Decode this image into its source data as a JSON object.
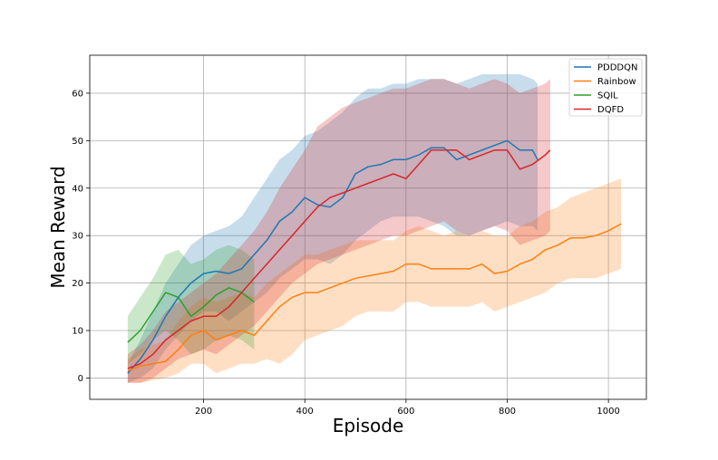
{
  "chart_data": {
    "type": "line",
    "title": "",
    "xlabel": "Episode",
    "ylabel": "Mean Reward",
    "xlim": [
      -25,
      1075
    ],
    "ylim": [
      -4.5,
      68
    ],
    "xticks": [
      200,
      400,
      600,
      800,
      1000
    ],
    "yticks": [
      0,
      10,
      20,
      30,
      40,
      50,
      60
    ],
    "grid": true,
    "legend_position": "top-right",
    "series": [
      {
        "name": "PDDDQN",
        "color": "#1f77b4",
        "x": [
          50,
          75,
          100,
          125,
          150,
          175,
          200,
          225,
          250,
          275,
          300,
          325,
          350,
          375,
          400,
          425,
          450,
          475,
          500,
          525,
          550,
          575,
          600,
          625,
          650,
          675,
          700,
          725,
          750,
          775,
          800,
          825,
          850,
          860
        ],
        "y": [
          1,
          4,
          8,
          13,
          17,
          20,
          22,
          22.5,
          22,
          23,
          26,
          29,
          33,
          35,
          38,
          36.5,
          36,
          38,
          43,
          44.5,
          45,
          46,
          46,
          47,
          48.5,
          48.5,
          46,
          47,
          48,
          49,
          50,
          48,
          48,
          46
        ],
        "lower": [
          -1,
          0,
          2,
          6,
          9,
          12,
          14,
          14,
          12,
          14,
          16,
          18,
          21,
          23,
          25,
          25,
          24,
          26,
          29,
          31,
          33,
          34,
          34,
          34,
          33,
          32,
          30,
          30,
          31,
          32,
          33,
          32,
          32,
          31
        ],
        "upper": [
          3,
          8,
          14,
          20,
          24,
          28,
          30,
          31,
          32,
          34,
          38,
          42,
          46,
          48,
          51,
          52,
          54,
          56,
          59,
          61,
          61,
          62,
          62,
          63,
          63,
          63,
          62,
          63,
          64,
          64,
          64,
          64,
          63,
          62
        ]
      },
      {
        "name": "Rainbow",
        "color": "#ff7f0e",
        "x": [
          50,
          75,
          100,
          125,
          150,
          175,
          200,
          225,
          250,
          275,
          300,
          325,
          350,
          375,
          400,
          425,
          450,
          475,
          500,
          525,
          550,
          575,
          600,
          625,
          650,
          675,
          700,
          725,
          750,
          775,
          800,
          825,
          850,
          875,
          900,
          925,
          950,
          975,
          1000,
          1025
        ],
        "y": [
          1.5,
          2.5,
          3,
          3.5,
          6,
          9,
          10,
          8,
          9,
          10,
          9,
          12,
          15,
          17,
          18,
          18,
          19,
          20,
          21,
          21.5,
          22,
          22.5,
          24,
          24,
          23,
          23,
          23,
          23,
          24,
          22,
          22.5,
          24,
          25,
          27,
          28,
          29.5,
          29.5,
          30,
          31,
          32.5
        ],
        "lower": [
          -1,
          -1,
          -0.5,
          0,
          1,
          3,
          3,
          1,
          2,
          3,
          3,
          4,
          3,
          5,
          8,
          9,
          10,
          11,
          13,
          14,
          14,
          14,
          16,
          16,
          15,
          15,
          15,
          15,
          16,
          14,
          15,
          16,
          17,
          18,
          20,
          21,
          21,
          21,
          22,
          23
        ],
        "upper": [
          4,
          6,
          7,
          8,
          12,
          15,
          17,
          16,
          17,
          18,
          17,
          20,
          22,
          24,
          26,
          26,
          27,
          28,
          29,
          29,
          29,
          29,
          31,
          32,
          31,
          30,
          31,
          30,
          31,
          30,
          30,
          32,
          33,
          35,
          36,
          38,
          39,
          40,
          41,
          42
        ]
      },
      {
        "name": "SQIL",
        "color": "#2ca02c",
        "x": [
          50,
          75,
          100,
          125,
          150,
          175,
          200,
          225,
          250,
          275,
          300
        ],
        "y": [
          7.5,
          10,
          14,
          18,
          17,
          13,
          15,
          17.5,
          19,
          18,
          16
        ],
        "lower": [
          3,
          5,
          8,
          10,
          8,
          5,
          6,
          8,
          9,
          8,
          6
        ],
        "upper": [
          13,
          17,
          21,
          26,
          27,
          24,
          25,
          27,
          28,
          27,
          25
        ]
      },
      {
        "name": "DQFD",
        "color": "#d62728",
        "x": [
          50,
          75,
          100,
          125,
          150,
          175,
          200,
          225,
          250,
          275,
          300,
          325,
          350,
          375,
          400,
          425,
          450,
          475,
          500,
          525,
          550,
          575,
          600,
          625,
          650,
          675,
          700,
          725,
          750,
          775,
          800,
          825,
          850,
          875,
          885
        ],
        "y": [
          2,
          3,
          5,
          8,
          10,
          12,
          13,
          13,
          15,
          18,
          21,
          24,
          27,
          30,
          33,
          36,
          38,
          39,
          40,
          41,
          42,
          43,
          42,
          45,
          48,
          48,
          48,
          46,
          47,
          48,
          48,
          44,
          45,
          47,
          48
        ],
        "lower": [
          -1,
          -1,
          0,
          2,
          4,
          5,
          6,
          5,
          7,
          9,
          11,
          14,
          17,
          20,
          22,
          24,
          25,
          26,
          27,
          28,
          29,
          30,
          30,
          31,
          32,
          33,
          31,
          30,
          31,
          32,
          31,
          28,
          29,
          30,
          31
        ],
        "upper": [
          5,
          7,
          10,
          14,
          16,
          18,
          20,
          22,
          25,
          28,
          31,
          35,
          40,
          44,
          48,
          53,
          55,
          57,
          58,
          59,
          60,
          61,
          61,
          62,
          63,
          63,
          62,
          61,
          62,
          63,
          62,
          60,
          61,
          62,
          63
        ]
      }
    ]
  }
}
